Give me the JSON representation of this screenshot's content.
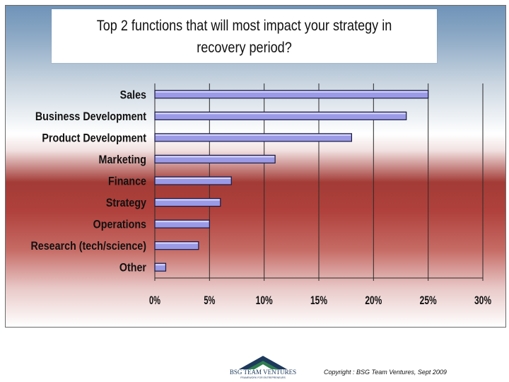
{
  "chart_data": {
    "type": "bar",
    "orientation": "horizontal",
    "title": "Top 2 functions that will most impact your strategy in recovery period?",
    "categories": [
      "Sales",
      "Business Development",
      "Product Development",
      "Marketing",
      "Finance",
      "Strategy",
      "Operations",
      "Research (tech/science)",
      "Other"
    ],
    "values": [
      25,
      23,
      18,
      11,
      7,
      6,
      5,
      4,
      1
    ],
    "xlim": [
      0,
      30
    ],
    "xticks": [
      "0%",
      "5%",
      "10%",
      "15%",
      "20%",
      "25%",
      "30%"
    ],
    "grid": true,
    "colors": {
      "bar": "#9a9ae6",
      "bar_edge": "#1a1a40"
    }
  },
  "footer": {
    "logo_text": "BSG TEAM VENTURES",
    "logo_tagline": "FRAMEWORK FOR ENTREPRENEURS",
    "copyright": "Copyright :  BSG Team Ventures, Sept 2009"
  }
}
